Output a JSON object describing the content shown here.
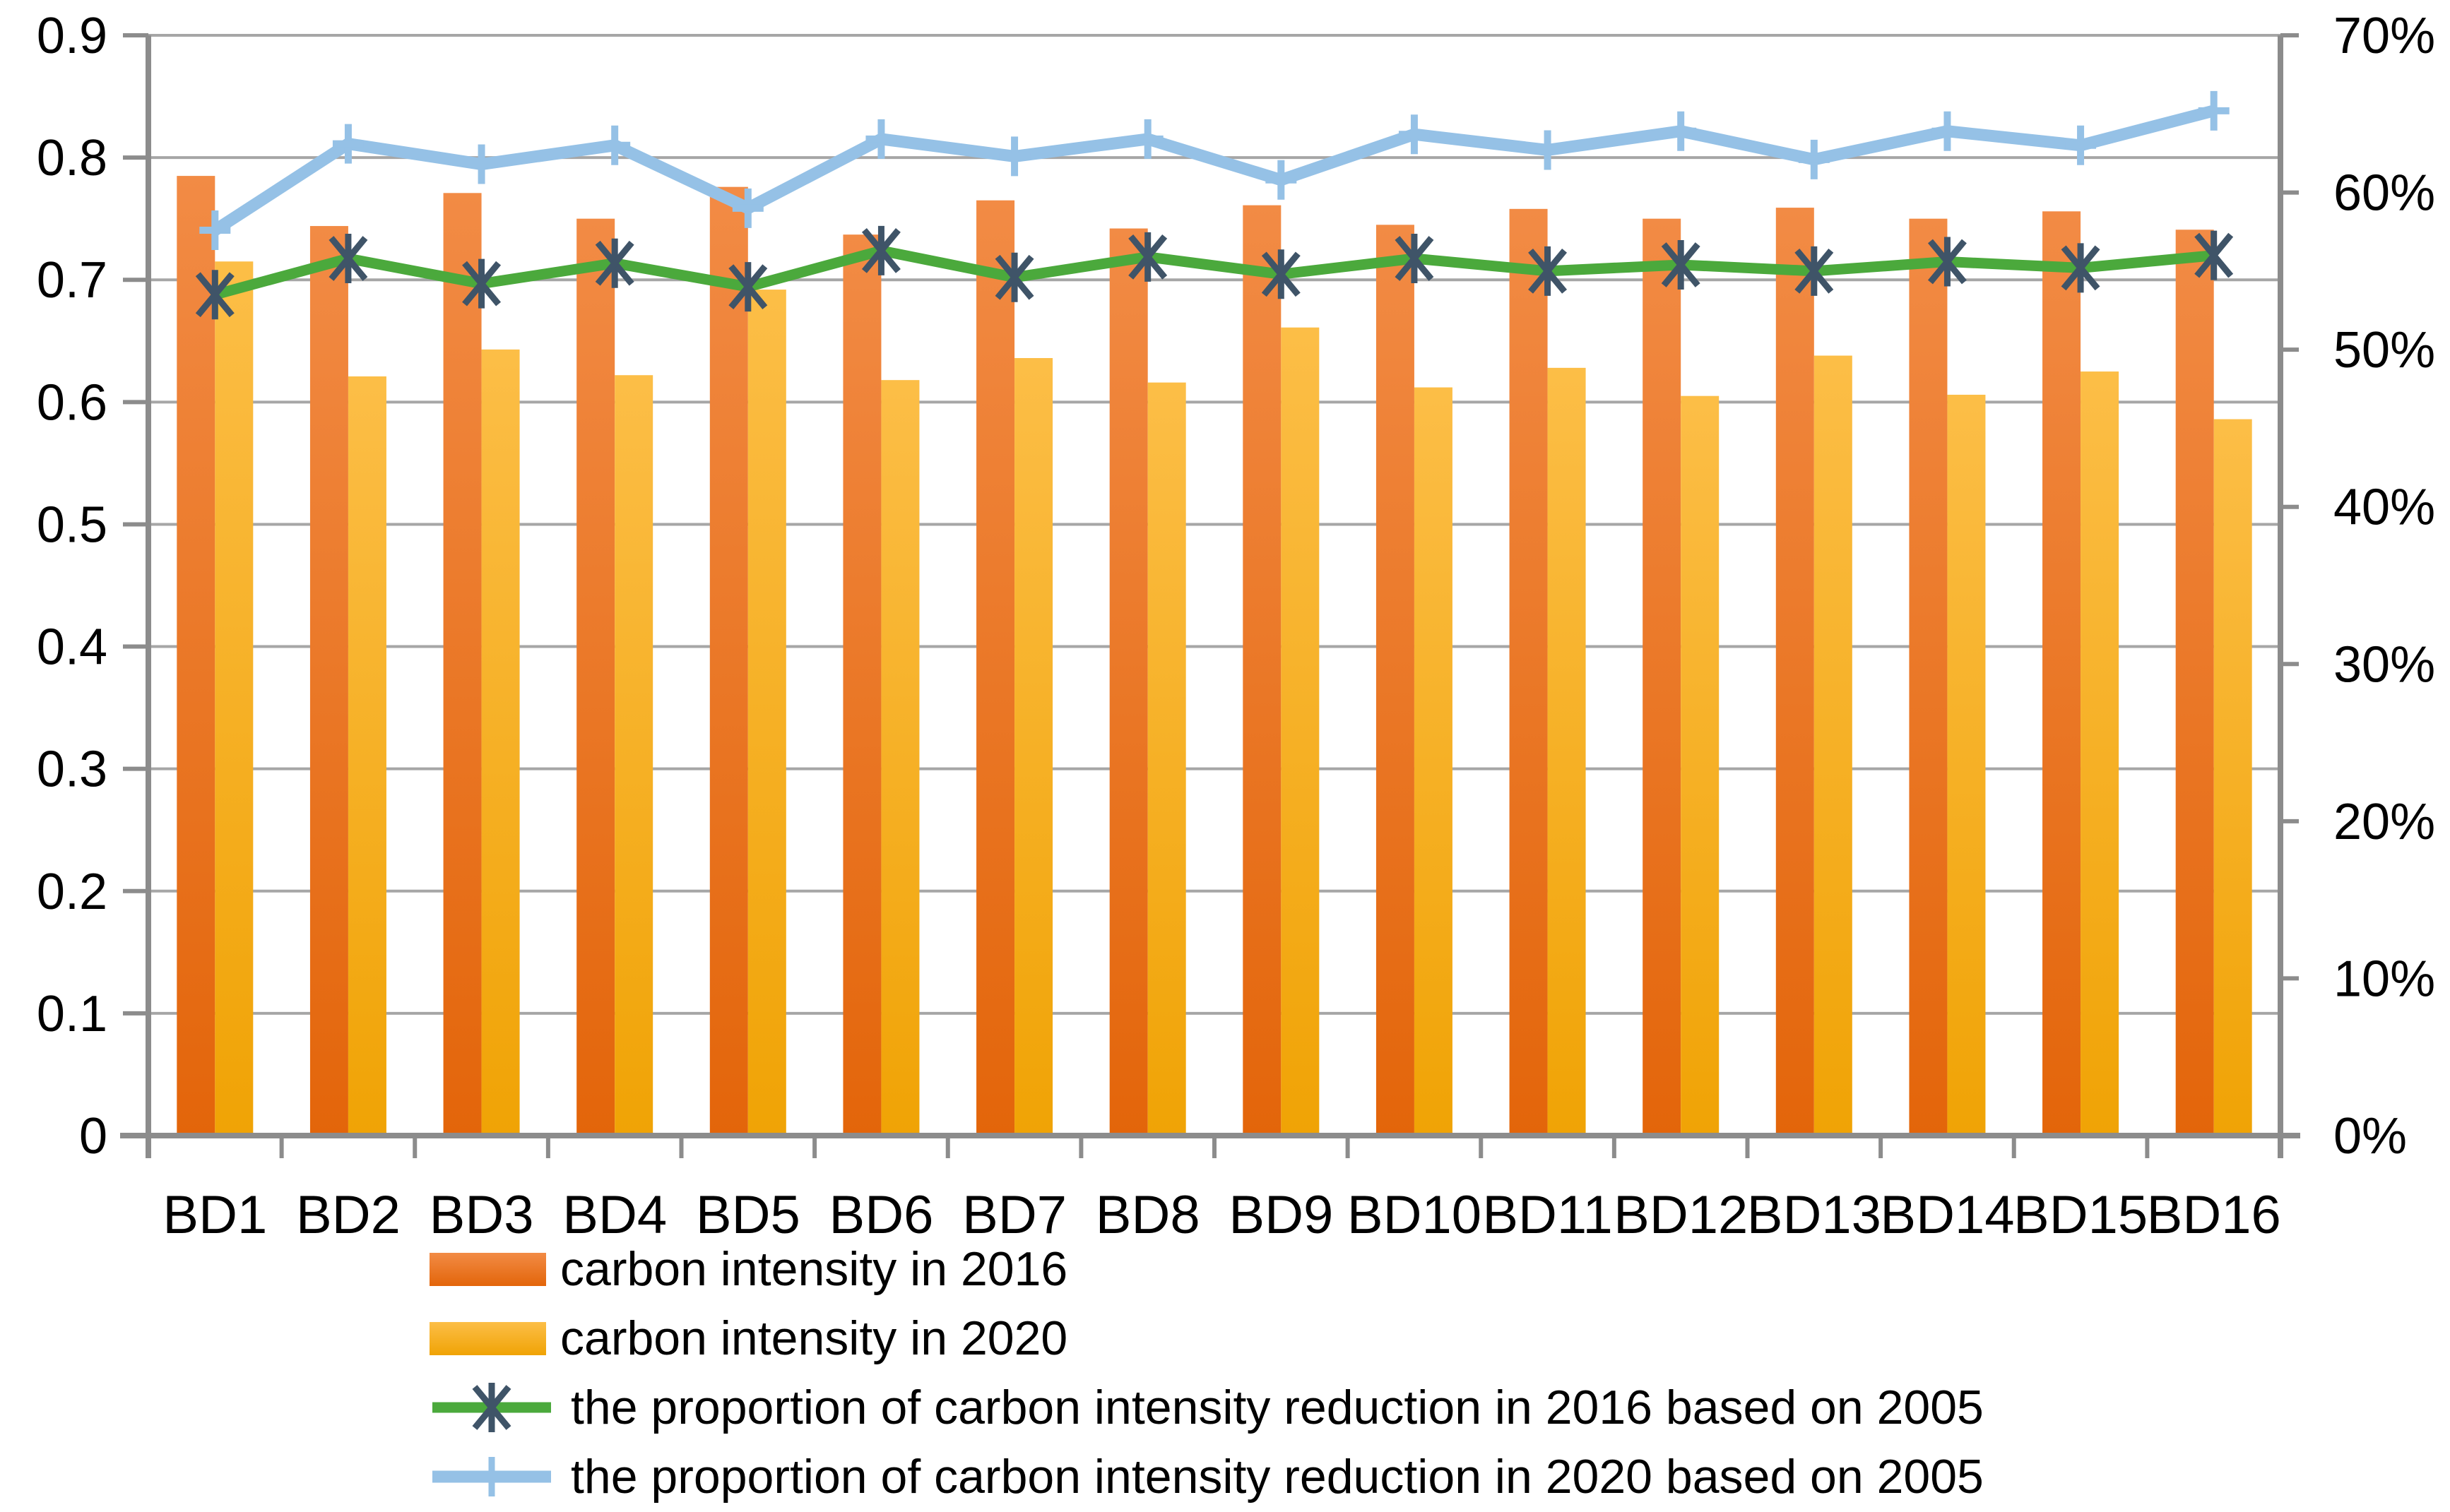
{
  "chart_data": {
    "type": "combo",
    "title": "",
    "categories": [
      "BD1",
      "BD2",
      "BD3",
      "BD4",
      "BD5",
      "BD6",
      "BD7",
      "BD8",
      "BD9",
      "BD10",
      "BD11",
      "BD12",
      "BD13",
      "BD14",
      "BD15",
      "BD16"
    ],
    "series": [
      {
        "name": "carbon intensity in 2016",
        "type": "bar",
        "axis": "left",
        "color_top": "#F28B45",
        "color_bottom": "#E3650A",
        "values": [
          0.785,
          0.744,
          0.771,
          0.75,
          0.776,
          0.737,
          0.765,
          0.742,
          0.761,
          0.745,
          0.758,
          0.75,
          0.759,
          0.75,
          0.756,
          0.741
        ]
      },
      {
        "name": "carbon intensity in 2020",
        "type": "bar",
        "axis": "left",
        "color_top": "#FCBE47",
        "color_bottom": "#F0A305",
        "values": [
          0.715,
          0.621,
          0.643,
          0.622,
          0.692,
          0.618,
          0.636,
          0.616,
          0.661,
          0.612,
          0.628,
          0.605,
          0.638,
          0.606,
          0.625,
          0.586
        ]
      },
      {
        "name": "the proportion of carbon intensity reduction in 2016 based on 2005",
        "type": "line",
        "axis": "right",
        "marker": "asterisk",
        "color": "#4BA93C",
        "marker_color": "#3F5468",
        "values_pct": [
          53.5,
          55.8,
          54.2,
          55.5,
          54.0,
          56.3,
          54.6,
          55.9,
          54.8,
          55.8,
          55.0,
          55.4,
          55.0,
          55.6,
          55.2,
          56.0
        ]
      },
      {
        "name": "the proportion of carbon intensity reduction in 2020 based on 2005",
        "type": "line",
        "axis": "right",
        "marker": "plus",
        "color": "#95C1E6",
        "marker_color": "#95C1E6",
        "values_pct": [
          57.6,
          63.1,
          61.8,
          63.0,
          59.0,
          63.4,
          62.3,
          63.4,
          60.8,
          63.7,
          62.7,
          63.9,
          62.1,
          63.9,
          63.0,
          65.2
        ]
      }
    ],
    "left_axis": {
      "min": 0,
      "max": 0.9,
      "step": 0.1,
      "tick_labels": [
        "0",
        "0.1",
        "0.2",
        "0.3",
        "0.4",
        "0.5",
        "0.6",
        "0.7",
        "0.8",
        "0.9"
      ]
    },
    "right_axis": {
      "min": 0,
      "max": 70,
      "step": 10,
      "tick_labels": [
        "0%",
        "10%",
        "20%",
        "30%",
        "40%",
        "50%",
        "60%",
        "70%"
      ]
    },
    "grid": true,
    "legend_position": "bottom-left"
  },
  "colors": {
    "gridline": "#A6A6A6",
    "axis_line": "#8C8C8C",
    "tick": "#8C8C8C",
    "text": "#000000",
    "background": "#FFFFFF"
  }
}
